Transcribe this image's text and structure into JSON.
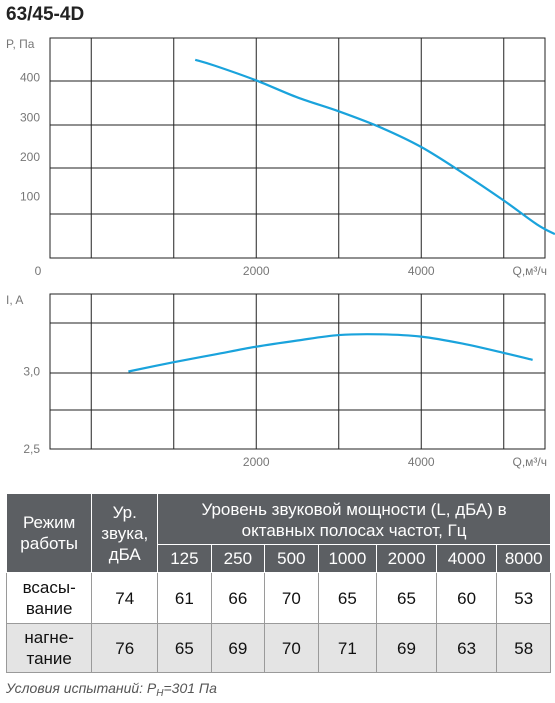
{
  "title": "63/45-4D",
  "chart_data": [
    {
      "type": "line",
      "ylabel": "P, Па",
      "xlabel": "Q,м³/ч",
      "xlim": [
        -500,
        5500
      ],
      "ylim": [
        -55,
        500
      ],
      "xticks": [
        2000,
        4000
      ],
      "yticks": [
        100,
        200,
        300,
        400
      ],
      "x_zero_label": "0",
      "series": [
        {
          "color": "#1aa3dc",
          "points": [
            [
              1260,
              445
            ],
            [
              1500,
              430
            ],
            [
              2000,
              393
            ],
            [
              2500,
              350
            ],
            [
              3000,
              315
            ],
            [
              3500,
              275
            ],
            [
              4000,
              225
            ],
            [
              4500,
              160
            ],
            [
              5000,
              90
            ],
            [
              5400,
              30
            ],
            [
              5620,
              5
            ]
          ]
        }
      ],
      "grid": true
    },
    {
      "type": "line",
      "ylabel": "I, A",
      "xlabel": "Q,м³/ч",
      "xlim": [
        -500,
        5500
      ],
      "ylim": [
        2.5,
        3.5
      ],
      "xticks": [
        2000,
        4000
      ],
      "yticks": [
        3.0,
        2.5
      ],
      "ytick_labels": [
        "3,0",
        "2,5"
      ],
      "series": [
        {
          "color": "#1aa3dc",
          "points": [
            [
              450,
              3.0
            ],
            [
              1000,
              3.06
            ],
            [
              1500,
              3.11
            ],
            [
              2000,
              3.16
            ],
            [
              2500,
              3.2
            ],
            [
              3000,
              3.235
            ],
            [
              3500,
              3.24
            ],
            [
              4000,
              3.225
            ],
            [
              4500,
              3.18
            ],
            [
              5000,
              3.12
            ],
            [
              5350,
              3.075
            ]
          ]
        }
      ],
      "grid": true
    }
  ],
  "table": {
    "col_mode": "Режим работы",
    "col_level": "Ур. звука, дБА",
    "col_power": "Уровень звуковой мощности (L, дБА) в октавных полосах частот, Гц",
    "freqs": [
      "125",
      "250",
      "500",
      "1000",
      "2000",
      "4000",
      "8000"
    ],
    "rows": [
      {
        "mode": "всасы-вание",
        "level": "74",
        "values": [
          "61",
          "66",
          "70",
          "65",
          "65",
          "60",
          "53"
        ]
      },
      {
        "mode": "нагне-тание",
        "level": "76",
        "values": [
          "65",
          "69",
          "70",
          "71",
          "69",
          "63",
          "58"
        ]
      }
    ]
  },
  "conditions": {
    "prefix": "Условия испытаний: P",
    "sub": "H",
    "suffix": "=301 Па"
  }
}
